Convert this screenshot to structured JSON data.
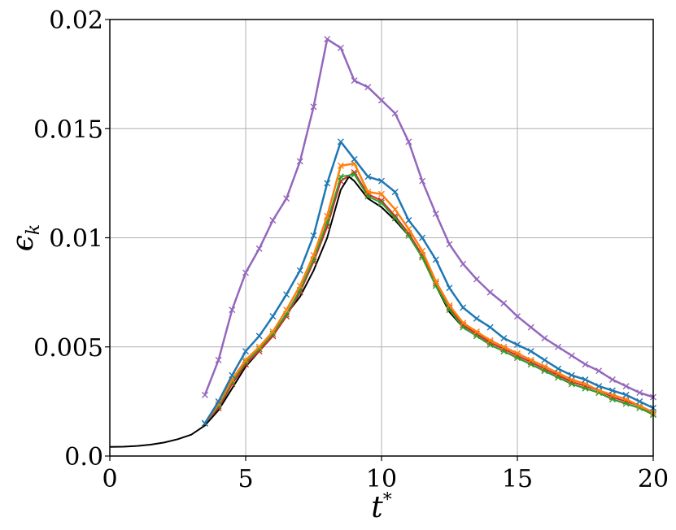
{
  "chart_data": {
    "type": "line",
    "xlabel": "t",
    "xlabel_superscript": "*",
    "ylabel": "ϵ",
    "ylabel_subscript": "k",
    "xlim": [
      0,
      20
    ],
    "ylim": [
      0.0,
      0.02
    ],
    "xticks": [
      0,
      5,
      10,
      15,
      20
    ],
    "xtick_labels": [
      "0",
      "5",
      "10",
      "15",
      "20"
    ],
    "yticks": [
      0.0,
      0.005,
      0.01,
      0.015,
      0.02
    ],
    "ytick_labels": [
      "0.0",
      "0.005",
      "0.01",
      "0.015",
      "0.02"
    ],
    "grid": true,
    "series": [
      {
        "color": "#000000",
        "marker": "none",
        "width": 2,
        "x": [
          0,
          0.5,
          1,
          1.5,
          2,
          2.5,
          3,
          3.5,
          4,
          4.5,
          5,
          5.5,
          6,
          6.5,
          7,
          7.5,
          8,
          8.5,
          8.8,
          9,
          9.5,
          10,
          10.5,
          11,
          11.5,
          12,
          12.5,
          13,
          13.5,
          14,
          14.5,
          15,
          15.5,
          16,
          16.5,
          17,
          17.5,
          18,
          18.5,
          19,
          19.5,
          20
        ],
        "y": [
          0.00042,
          0.00043,
          0.00046,
          0.00052,
          0.00062,
          0.00077,
          0.00098,
          0.0014,
          0.0021,
          0.0031,
          0.0041,
          0.0048,
          0.0055,
          0.0065,
          0.0073,
          0.0085,
          0.01,
          0.0122,
          0.0128,
          0.0126,
          0.0118,
          0.0114,
          0.0108,
          0.0101,
          0.0091,
          0.0078,
          0.0066,
          0.0059,
          0.0055,
          0.0051,
          0.0048,
          0.0045,
          0.0042,
          0.0039,
          0.0036,
          0.0033,
          0.0031,
          0.0029,
          0.0026,
          0.0024,
          0.0022,
          0.0019
        ]
      },
      {
        "color": "#d62728",
        "marker": "x",
        "width": 2,
        "x": [
          3.5,
          4,
          4.5,
          5,
          5.5,
          6,
          6.5,
          7,
          7.5,
          8,
          8.5,
          9,
          9.5,
          10,
          10.5,
          11,
          11.5,
          12,
          12.5,
          13,
          13.5,
          14,
          14.5,
          15,
          15.5,
          16,
          16.5,
          17,
          17.5,
          18,
          18.5,
          19,
          19.5,
          20
        ],
        "y": [
          0.0015,
          0.0022,
          0.0033,
          0.0042,
          0.0048,
          0.0055,
          0.0064,
          0.0075,
          0.0089,
          0.0105,
          0.0126,
          0.013,
          0.012,
          0.0117,
          0.011,
          0.0102,
          0.0092,
          0.0079,
          0.0068,
          0.006,
          0.0056,
          0.0052,
          0.0049,
          0.0046,
          0.0043,
          0.004,
          0.0037,
          0.0034,
          0.0032,
          0.003,
          0.0027,
          0.0025,
          0.0023,
          0.0019
        ]
      },
      {
        "color": "#2ca02c",
        "marker": "x",
        "width": 2,
        "x": [
          3.5,
          4,
          4.5,
          5,
          5.5,
          6,
          6.5,
          7,
          7.5,
          8,
          8.5,
          9,
          9.5,
          10,
          10.5,
          11,
          11.5,
          12,
          12.5,
          13,
          13.5,
          14,
          14.5,
          15,
          15.5,
          16,
          16.5,
          17,
          17.5,
          18,
          18.5,
          19,
          19.5,
          20
        ],
        "y": [
          0.0015,
          0.0023,
          0.0034,
          0.0043,
          0.0049,
          0.0056,
          0.0065,
          0.0076,
          0.009,
          0.0107,
          0.0128,
          0.0129,
          0.0119,
          0.0116,
          0.0109,
          0.0101,
          0.0091,
          0.0078,
          0.0067,
          0.0059,
          0.0055,
          0.0051,
          0.0048,
          0.0045,
          0.0042,
          0.0039,
          0.0036,
          0.0033,
          0.0031,
          0.0029,
          0.0026,
          0.0024,
          0.0022,
          0.0019
        ]
      },
      {
        "color": "#ff7f0e",
        "marker": "x",
        "width": 2.5,
        "x": [
          3.5,
          4,
          4.5,
          5,
          5.5,
          6,
          6.5,
          7,
          7.5,
          8,
          8.5,
          9,
          9.5,
          10,
          10.5,
          11,
          11.5,
          12,
          12.5,
          13,
          13.5,
          14,
          14.5,
          15,
          15.5,
          16,
          16.5,
          17,
          17.5,
          18,
          18.5,
          19,
          19.5,
          20
        ],
        "y": [
          0.0015,
          0.0024,
          0.0035,
          0.0044,
          0.005,
          0.0057,
          0.0067,
          0.0078,
          0.0092,
          0.011,
          0.0133,
          0.0134,
          0.0121,
          0.012,
          0.0113,
          0.0104,
          0.0094,
          0.008,
          0.0069,
          0.0061,
          0.0057,
          0.0053,
          0.005,
          0.0047,
          0.0044,
          0.0041,
          0.0038,
          0.0035,
          0.0033,
          0.003,
          0.0028,
          0.0026,
          0.0023,
          0.002
        ]
      },
      {
        "color": "#1f77b4",
        "marker": "x",
        "width": 2.5,
        "x": [
          3.5,
          4,
          4.5,
          5,
          5.5,
          6,
          6.5,
          7,
          7.5,
          8,
          8.5,
          9,
          9.5,
          10,
          10.5,
          11,
          11.5,
          12,
          12.5,
          13,
          13.5,
          14,
          14.5,
          15,
          15.5,
          16,
          16.5,
          17,
          17.5,
          18,
          18.5,
          19,
          19.5,
          20
        ],
        "y": [
          0.0015,
          0.0025,
          0.0037,
          0.0048,
          0.0055,
          0.0064,
          0.0074,
          0.0085,
          0.0101,
          0.0125,
          0.0144,
          0.0136,
          0.0128,
          0.0126,
          0.0121,
          0.0108,
          0.01,
          0.009,
          0.0077,
          0.0068,
          0.0063,
          0.0059,
          0.0054,
          0.0051,
          0.0048,
          0.0044,
          0.004,
          0.0037,
          0.0035,
          0.0032,
          0.003,
          0.0028,
          0.0025,
          0.0022
        ]
      },
      {
        "color": "#9467bd",
        "marker": "x",
        "width": 2.5,
        "x": [
          3.5,
          4,
          4.5,
          5,
          5.5,
          6,
          6.5,
          7,
          7.5,
          8,
          8.5,
          9,
          9.5,
          10,
          10.5,
          11,
          11.5,
          12,
          12.5,
          13,
          13.5,
          14,
          14.5,
          15,
          15.5,
          16,
          16.5,
          17,
          17.5,
          18,
          18.5,
          19,
          19.5,
          20
        ],
        "y": [
          0.0028,
          0.0044,
          0.0067,
          0.0084,
          0.0095,
          0.0108,
          0.0118,
          0.0135,
          0.016,
          0.0191,
          0.0187,
          0.0172,
          0.0169,
          0.0163,
          0.0157,
          0.0144,
          0.0126,
          0.0111,
          0.0097,
          0.0088,
          0.0081,
          0.0075,
          0.007,
          0.0064,
          0.0059,
          0.0054,
          0.005,
          0.0046,
          0.0042,
          0.0039,
          0.0035,
          0.0032,
          0.0029,
          0.0027
        ]
      }
    ]
  }
}
